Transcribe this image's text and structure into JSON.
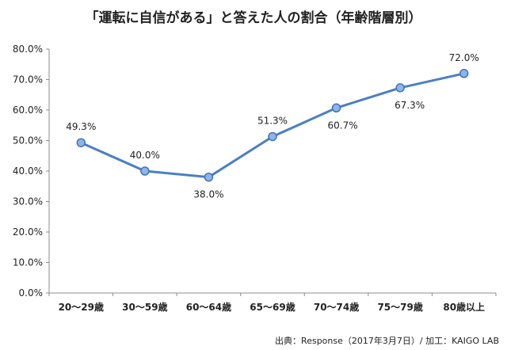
{
  "chart_data": {
    "type": "line",
    "title": "「運転に自信がある」と答えた人の割合（年齢階層別）",
    "categories": [
      "20〜29歳",
      "30〜59歳",
      "60〜64歳",
      "65〜69歳",
      "70〜74歳",
      "75〜79歳",
      "80歳以上"
    ],
    "values": [
      49.3,
      40.0,
      38.0,
      51.3,
      60.7,
      67.3,
      72.0
    ],
    "data_labels": [
      "49.3%",
      "40.0%",
      "38.0%",
      "51.3%",
      "60.7%",
      "67.3%",
      "72.0%"
    ],
    "ylim": [
      0,
      80
    ],
    "yticks": [
      0,
      10,
      20,
      30,
      40,
      50,
      60,
      70,
      80
    ],
    "ytick_labels": [
      "0.0%",
      "10.0%",
      "20.0%",
      "30.0%",
      "40.0%",
      "50.0%",
      "60.0%",
      "70.0%",
      "80.0%"
    ],
    "xlabel": "",
    "ylabel": "",
    "grid": false,
    "legend": "none",
    "line_color": "#4a7fc4",
    "marker_fill": "#8fb5e6",
    "marker_stroke": "#3f74bb",
    "source": "出典：Response（2017年3月7日）/ 加工：KAIGO LAB"
  }
}
